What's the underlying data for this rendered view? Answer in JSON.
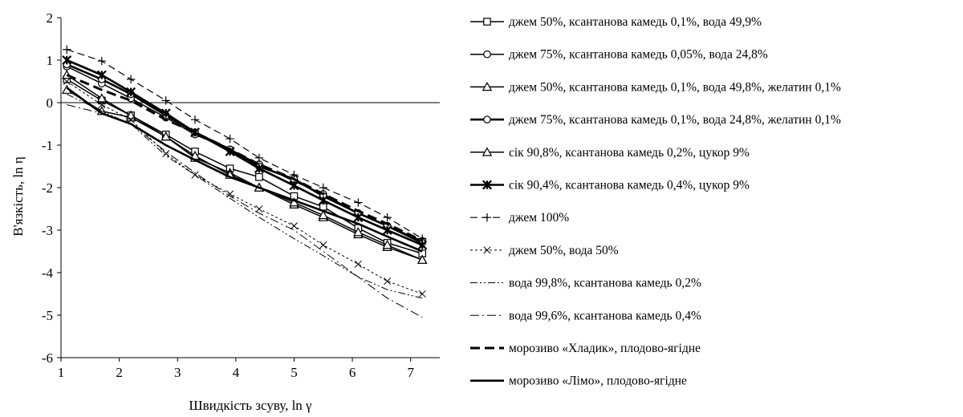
{
  "chart_data": {
    "type": "line",
    "xlabel": "Швидкість зсуву, ln γ",
    "ylabel": "В'язкість, ln η",
    "xlim": [
      1,
      7.5
    ],
    "ylim": [
      -6,
      2
    ],
    "xticks": [
      "1",
      "2",
      "3",
      "4",
      "5",
      "6",
      "7"
    ],
    "yticks": [
      "2",
      "1",
      "0",
      "-1",
      "-2",
      "-3",
      "-4",
      "-5",
      "-6"
    ],
    "x": [
      1.1,
      1.7,
      2.2,
      2.8,
      3.3,
      3.9,
      4.4,
      5.0,
      5.5,
      6.1,
      6.6,
      7.2
    ],
    "grid": false,
    "legend_position": "right",
    "series": [
      {
        "name": "джем 50%, ксантанова камедь 0,1%, вода 49,9%",
        "marker": "square",
        "dash": "solid",
        "width": 1.5,
        "values": [
          0.55,
          0.05,
          -0.3,
          -0.75,
          -1.15,
          -1.55,
          -1.75,
          -2.2,
          -2.45,
          -2.95,
          -3.3,
          -3.55
        ]
      },
      {
        "name": "джем 75%, ксантанова камедь 0,05%, вода 24,8%",
        "marker": "circle",
        "dash": "solid",
        "width": 1.5,
        "values": [
          0.85,
          0.45,
          0.1,
          -0.35,
          -0.75,
          -1.1,
          -1.45,
          -1.85,
          -2.15,
          -2.6,
          -2.9,
          -3.25
        ]
      },
      {
        "name": "джем 50%, ксантанова камедь 0,1%, вода 49,8%, желатин 0,1%",
        "marker": "triangle",
        "dash": "solid",
        "width": 1.5,
        "values": [
          0.3,
          -0.2,
          -0.35,
          -0.8,
          -1.3,
          -1.65,
          -2.0,
          -2.4,
          -2.7,
          -3.1,
          -3.4,
          -3.7
        ]
      },
      {
        "name": "джем 75%, ксантанова камедь 0,1%, вода 24,8%, желатин 0,1%",
        "marker": "circle",
        "dash": "solid",
        "width": 2.6,
        "values": [
          0.9,
          0.55,
          0.2,
          -0.3,
          -0.7,
          -1.1,
          -1.5,
          -1.8,
          -2.2,
          -2.6,
          -2.9,
          -3.3
        ]
      },
      {
        "name": "сік 90,8%, ксантанова камедь 0,2%, цукор 9%",
        "marker": "triangle",
        "dash": "solid",
        "width": 1.5,
        "values": [
          0.65,
          0.1,
          -0.3,
          -0.8,
          -1.25,
          -1.7,
          -2.0,
          -2.35,
          -2.65,
          -3.05,
          -3.35,
          -3.7
        ]
      },
      {
        "name": "сік 90,4%, ксантанова камедь 0,4%, цукор 9%",
        "marker": "cross-x",
        "dash": "solid",
        "width": 2.6,
        "values": [
          1.0,
          0.65,
          0.25,
          -0.25,
          -0.7,
          -1.15,
          -1.55,
          -1.95,
          -2.3,
          -2.7,
          -3.0,
          -3.35
        ]
      },
      {
        "name": "джем 100%",
        "marker": "plus",
        "dash": "long-dash",
        "width": 1.2,
        "values": [
          1.25,
          0.98,
          0.55,
          0.05,
          -0.4,
          -0.85,
          -1.3,
          -1.7,
          -2.0,
          -2.35,
          -2.7,
          -3.2
        ]
      },
      {
        "name": "джем 50%, вода 50%",
        "marker": "x",
        "dash": "short-dash",
        "width": 1.0,
        "values": [
          0.5,
          -0.05,
          -0.4,
          -1.2,
          -1.7,
          -2.15,
          -2.5,
          -2.9,
          -3.35,
          -3.8,
          -4.2,
          -4.5
        ]
      },
      {
        "name": "вода 99,8%, ксантанова камедь 0,2%",
        "marker": "none",
        "dash": "dash-dot-dot",
        "width": 1.0,
        "values": [
          0.2,
          -0.2,
          -0.5,
          -1.25,
          -1.7,
          -2.25,
          -2.7,
          -3.2,
          -3.6,
          -4.1,
          -4.4,
          -4.6
        ]
      },
      {
        "name": "вода 99,6%, ксантанова камедь 0,4%",
        "marker": "none",
        "dash": "dash-dot",
        "width": 1.0,
        "values": [
          -0.05,
          -0.25,
          -0.5,
          -1.15,
          -1.65,
          -2.2,
          -2.6,
          -3.0,
          -3.5,
          -4.1,
          -4.6,
          -5.05
        ]
      },
      {
        "name": "морозиво «Хладик», плодово-ягідне",
        "marker": "none",
        "dash": "heavy-dash",
        "width": 3.0,
        "values": [
          0.65,
          0.3,
          0.05,
          -0.4,
          -0.7,
          -1.1,
          -1.45,
          -1.8,
          -2.15,
          -2.55,
          -2.85,
          -3.25
        ]
      },
      {
        "name": "морозиво «Лімо», плодово-ягідне",
        "marker": "none",
        "dash": "solid",
        "width": 2.6,
        "values": [
          0.35,
          -0.25,
          -0.5,
          -1.0,
          -1.35,
          -1.75,
          -2.0,
          -2.3,
          -2.55,
          -2.85,
          -3.15,
          -3.5
        ]
      }
    ]
  }
}
